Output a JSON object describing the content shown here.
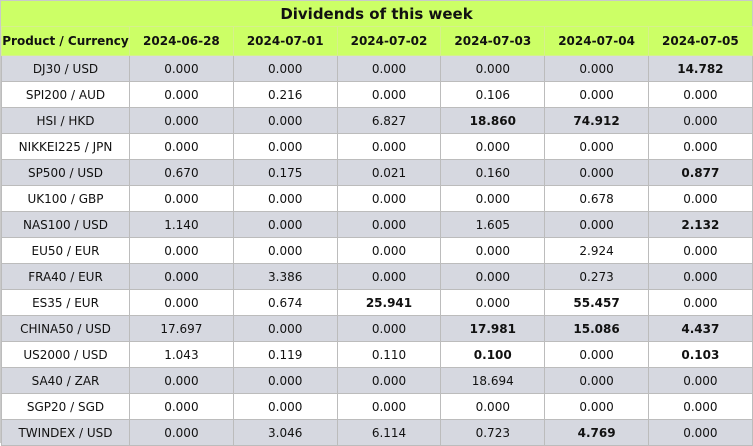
{
  "title": "Dividends of this week",
  "columns": [
    "Product / Currency",
    "2024-06-28",
    "2024-07-01",
    "2024-07-02",
    "2024-07-03",
    "2024-07-04",
    "2024-07-05"
  ],
  "rows": [
    {
      "product": "DJ30 / USD",
      "values": [
        "0.000",
        "0.000",
        "0.000",
        "0.000",
        "0.000",
        "14.782"
      ],
      "bold": [
        false,
        false,
        false,
        false,
        false,
        true
      ]
    },
    {
      "product": "SPI200 / AUD",
      "values": [
        "0.000",
        "0.216",
        "0.000",
        "0.106",
        "0.000",
        "0.000"
      ],
      "bold": [
        false,
        false,
        false,
        false,
        false,
        false
      ]
    },
    {
      "product": "HSI / HKD",
      "values": [
        "0.000",
        "0.000",
        "6.827",
        "18.860",
        "74.912",
        "0.000"
      ],
      "bold": [
        false,
        false,
        false,
        true,
        true,
        false
      ]
    },
    {
      "product": "NIKKEI225 / JPN",
      "values": [
        "0.000",
        "0.000",
        "0.000",
        "0.000",
        "0.000",
        "0.000"
      ],
      "bold": [
        false,
        false,
        false,
        false,
        false,
        false
      ]
    },
    {
      "product": "SP500 / USD",
      "values": [
        "0.670",
        "0.175",
        "0.021",
        "0.160",
        "0.000",
        "0.877"
      ],
      "bold": [
        false,
        false,
        false,
        false,
        false,
        true
      ]
    },
    {
      "product": "UK100 / GBP",
      "values": [
        "0.000",
        "0.000",
        "0.000",
        "0.000",
        "0.678",
        "0.000"
      ],
      "bold": [
        false,
        false,
        false,
        false,
        false,
        false
      ]
    },
    {
      "product": "NAS100 / USD",
      "values": [
        "1.140",
        "0.000",
        "0.000",
        "1.605",
        "0.000",
        "2.132"
      ],
      "bold": [
        false,
        false,
        false,
        false,
        false,
        true
      ]
    },
    {
      "product": "EU50 / EUR",
      "values": [
        "0.000",
        "0.000",
        "0.000",
        "0.000",
        "2.924",
        "0.000"
      ],
      "bold": [
        false,
        false,
        false,
        false,
        false,
        false
      ]
    },
    {
      "product": "FRA40 / EUR",
      "values": [
        "0.000",
        "3.386",
        "0.000",
        "0.000",
        "0.273",
        "0.000"
      ],
      "bold": [
        false,
        false,
        false,
        false,
        false,
        false
      ]
    },
    {
      "product": "ES35 / EUR",
      "values": [
        "0.000",
        "0.674",
        "25.941",
        "0.000",
        "55.457",
        "0.000"
      ],
      "bold": [
        false,
        false,
        true,
        false,
        true,
        false
      ]
    },
    {
      "product": "CHINA50 / USD",
      "values": [
        "17.697",
        "0.000",
        "0.000",
        "17.981",
        "15.086",
        "4.437"
      ],
      "bold": [
        false,
        false,
        false,
        true,
        true,
        true
      ]
    },
    {
      "product": "US2000 / USD",
      "values": [
        "1.043",
        "0.119",
        "0.110",
        "0.100",
        "0.000",
        "0.103"
      ],
      "bold": [
        false,
        false,
        false,
        true,
        false,
        true
      ]
    },
    {
      "product": "SA40 / ZAR",
      "values": [
        "0.000",
        "0.000",
        "0.000",
        "18.694",
        "0.000",
        "0.000"
      ],
      "bold": [
        false,
        false,
        false,
        false,
        false,
        false
      ]
    },
    {
      "product": "SGP20 / SGD",
      "values": [
        "0.000",
        "0.000",
        "0.000",
        "0.000",
        "0.000",
        "0.000"
      ],
      "bold": [
        false,
        false,
        false,
        false,
        false,
        false
      ]
    },
    {
      "product": "TWINDEX / USD",
      "values": [
        "0.000",
        "3.046",
        "6.114",
        "0.723",
        "4.769",
        "0.000"
      ],
      "bold": [
        false,
        false,
        false,
        false,
        true,
        false
      ]
    }
  ],
  "colors": {
    "header_bg": "#ccff66",
    "row_alt_bg": "#d6d8e0",
    "row_bg": "#ffffff",
    "border": "#bcbcbc"
  }
}
